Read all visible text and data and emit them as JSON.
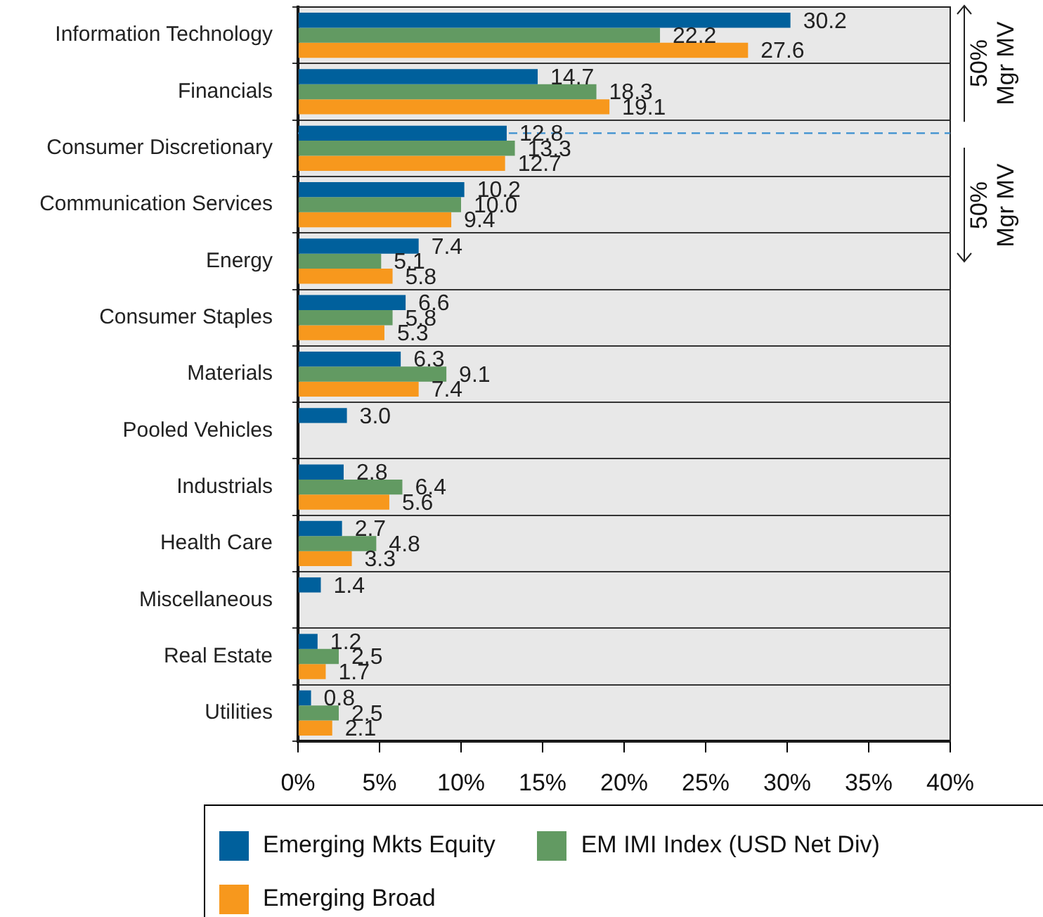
{
  "chart_data": {
    "type": "bar",
    "orientation": "horizontal",
    "categories": [
      "Information Technology",
      "Financials",
      "Consumer Discretionary",
      "Communication Services",
      "Energy",
      "Consumer Staples",
      "Materials",
      "Pooled Vehicles",
      "Industrials",
      "Health Care",
      "Miscellaneous",
      "Real Estate",
      "Utilities"
    ],
    "series": [
      {
        "name": "Emerging Mkts Equity",
        "color": "#00609c",
        "values": [
          30.2,
          14.7,
          12.8,
          10.2,
          7.4,
          6.6,
          6.3,
          3.0,
          2.8,
          2.7,
          1.4,
          1.2,
          0.8
        ],
        "value_labels": [
          "30.2",
          "14.7",
          "12.8",
          "10.2",
          "7.4",
          "6.6",
          "6.3",
          "3.0",
          "2.8",
          "2.7",
          "1.4",
          "1.2",
          "0.8"
        ]
      },
      {
        "name": "EM IMI Index (USD Net Div)",
        "color": "#629a62",
        "values": [
          22.2,
          18.3,
          13.3,
          10.0,
          5.1,
          5.8,
          9.1,
          null,
          6.4,
          4.8,
          null,
          2.5,
          2.5
        ],
        "value_labels": [
          "22.2",
          "18.3",
          "13.3",
          "10.0",
          "5.1",
          "5.8",
          "9.1",
          null,
          "6.4",
          "4.8",
          null,
          "2.5",
          "2.5"
        ]
      },
      {
        "name": "Emerging Broad",
        "color": "#f7981d",
        "values": [
          27.6,
          19.1,
          12.7,
          9.4,
          5.8,
          5.3,
          7.4,
          null,
          5.6,
          3.3,
          null,
          1.7,
          2.1
        ],
        "value_labels": [
          "27.6",
          "19.1",
          "12.7",
          "9.4",
          "5.8",
          "5.3",
          "7.4",
          null,
          "5.6",
          "3.3",
          null,
          "1.7",
          "2.1"
        ]
      }
    ],
    "xlim": [
      0,
      40
    ],
    "xticks": [
      {
        "value": 0,
        "label": "0%"
      },
      {
        "value": 5,
        "label": "5%"
      },
      {
        "value": 10,
        "label": "10%"
      },
      {
        "value": 15,
        "label": "15%"
      },
      {
        "value": 20,
        "label": "20%"
      },
      {
        "value": 25,
        "label": "25%"
      },
      {
        "value": 30,
        "label": "30%"
      },
      {
        "value": 35,
        "label": "35%"
      },
      {
        "value": 40,
        "label": "40%"
      }
    ],
    "grid": "y",
    "legend": "bottom",
    "ref_lines": [
      {
        "axis": "y",
        "value": "Consumer Discretionary",
        "line_style": "dashed",
        "color": "#3a8fcf"
      }
    ],
    "annotations": [
      "50% Mgr MV",
      "50% Mgr MV"
    ]
  }
}
